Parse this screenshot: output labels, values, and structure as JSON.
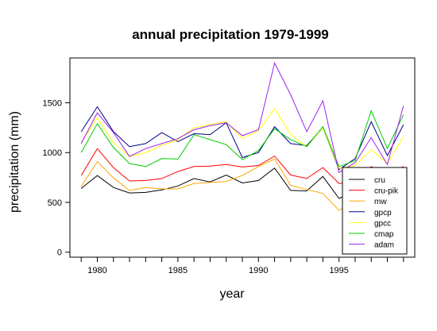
{
  "chart_data": {
    "type": "line",
    "title": "annual precipitation 1979-1999",
    "xlabel": "year",
    "ylabel": "precipitation (mm)",
    "x": [
      1979,
      1980,
      1981,
      1982,
      1983,
      1984,
      1985,
      1986,
      1987,
      1988,
      1989,
      1990,
      1991,
      1992,
      1993,
      1994,
      1995,
      1996,
      1997,
      1998,
      1999
    ],
    "xticks": [
      "1980",
      "1985",
      "1990",
      "1995"
    ],
    "xtick_values": [
      1980,
      1985,
      1990,
      1995
    ],
    "yticks": [
      "0",
      "500",
      "1000",
      "1500"
    ],
    "ytick_values": [
      0,
      500,
      1000,
      1500
    ],
    "xlim": [
      1978.3,
      1999.7
    ],
    "ylim": [
      -50,
      1950
    ],
    "grid": false,
    "legend_position": "bottom-right",
    "series": [
      {
        "name": "cru",
        "color": "#000000",
        "values": [
          640,
          770,
          650,
          595,
          600,
          625,
          665,
          740,
          705,
          775,
          695,
          720,
          845,
          620,
          615,
          760,
          540,
          610,
          745,
          620,
          660
        ]
      },
      {
        "name": "cru-pik",
        "color": "#ff0000",
        "values": [
          770,
          1040,
          850,
          715,
          720,
          740,
          810,
          860,
          865,
          880,
          855,
          870,
          965,
          775,
          740,
          850,
          690,
          700,
          860,
          780,
          860
        ]
      },
      {
        "name": "mw",
        "color": "#ffa500",
        "values": [
          660,
          910,
          745,
          620,
          650,
          635,
          635,
          690,
          700,
          710,
          770,
          860,
          935,
          670,
          630,
          590,
          420,
          510,
          600,
          560,
          640
        ]
      },
      {
        "name": "gpcp",
        "color": "#00008b",
        "values": [
          1210,
          1460,
          1210,
          1060,
          1090,
          1200,
          1110,
          1190,
          1180,
          1300,
          950,
          1000,
          1260,
          1090,
          1070,
          1250,
          830,
          940,
          1310,
          970,
          1280
        ]
      },
      {
        "name": "gpcc",
        "color": "#ffff00",
        "values": [
          1100,
          1350,
          1100,
          960,
          1000,
          1070,
          1130,
          1250,
          1280,
          1310,
          1140,
          1220,
          1440,
          1180,
          1060,
          1250,
          840,
          870,
          1030,
          890,
          1160
        ]
      },
      {
        "name": "cmap",
        "color": "#00cd00",
        "values": [
          1000,
          1290,
          1050,
          890,
          860,
          940,
          935,
          1180,
          1130,
          1080,
          930,
          1020,
          1240,
          1130,
          1060,
          1260,
          860,
          920,
          1420,
          1040,
          1380
        ]
      },
      {
        "name": "adam",
        "color": "#a020f0",
        "values": [
          1090,
          1400,
          1200,
          960,
          1040,
          1090,
          1140,
          1230,
          1270,
          1300,
          1170,
          1230,
          1900,
          1580,
          1210,
          1520,
          800,
          900,
          1150,
          880,
          1470
        ]
      }
    ]
  }
}
